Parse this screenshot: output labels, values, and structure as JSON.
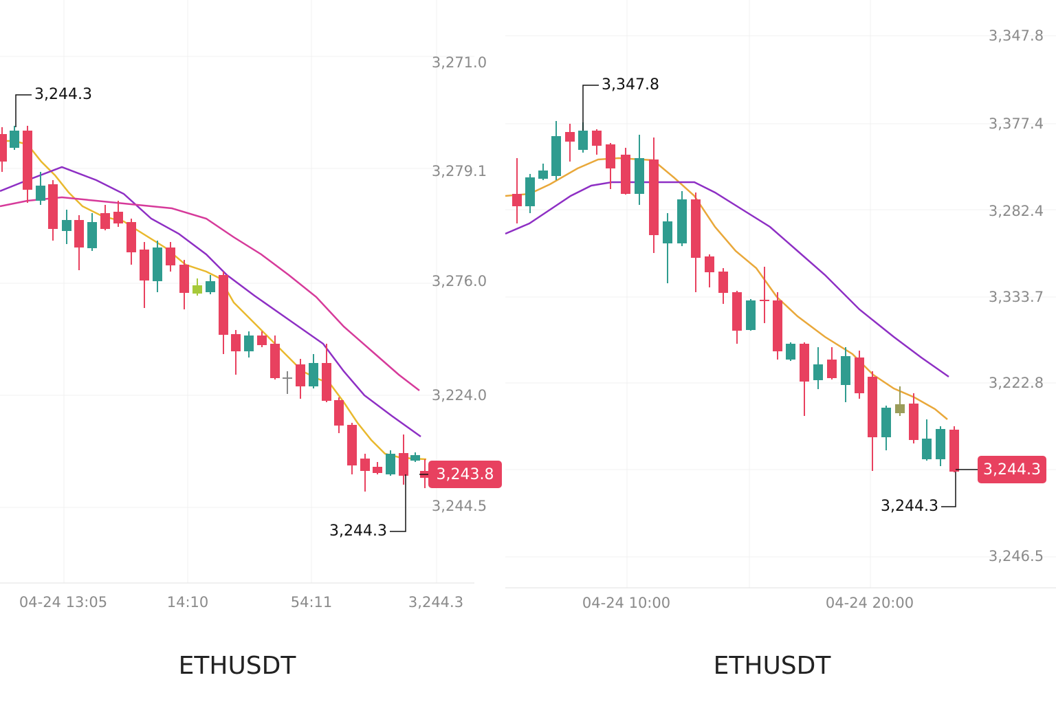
{
  "panels": [
    {
      "title": "ETHUSDT",
      "y_axis_labels": [
        "3,271.0",
        "3,279.1",
        "3,276.0",
        "3,224.0",
        "3,244.5"
      ],
      "x_axis_labels": [
        "04-24 13:05",
        "14:10",
        "54:11",
        "3,244.3"
      ],
      "price_tag": "3,243.8",
      "annotations": [
        "3,244.3",
        "3,244.3"
      ]
    },
    {
      "title": "ETHUSDT",
      "y_axis_labels": [
        "3,347.8",
        "3,377.4",
        "3,282.4",
        "3,333.7",
        "3,222.8",
        "3,246.5"
      ],
      "x_axis_labels": [
        "04-24 10:00",
        "04-24 20:00"
      ],
      "price_tag": "3,244.3",
      "annotations": [
        "3,347.8",
        "3,244.3"
      ]
    }
  ]
}
